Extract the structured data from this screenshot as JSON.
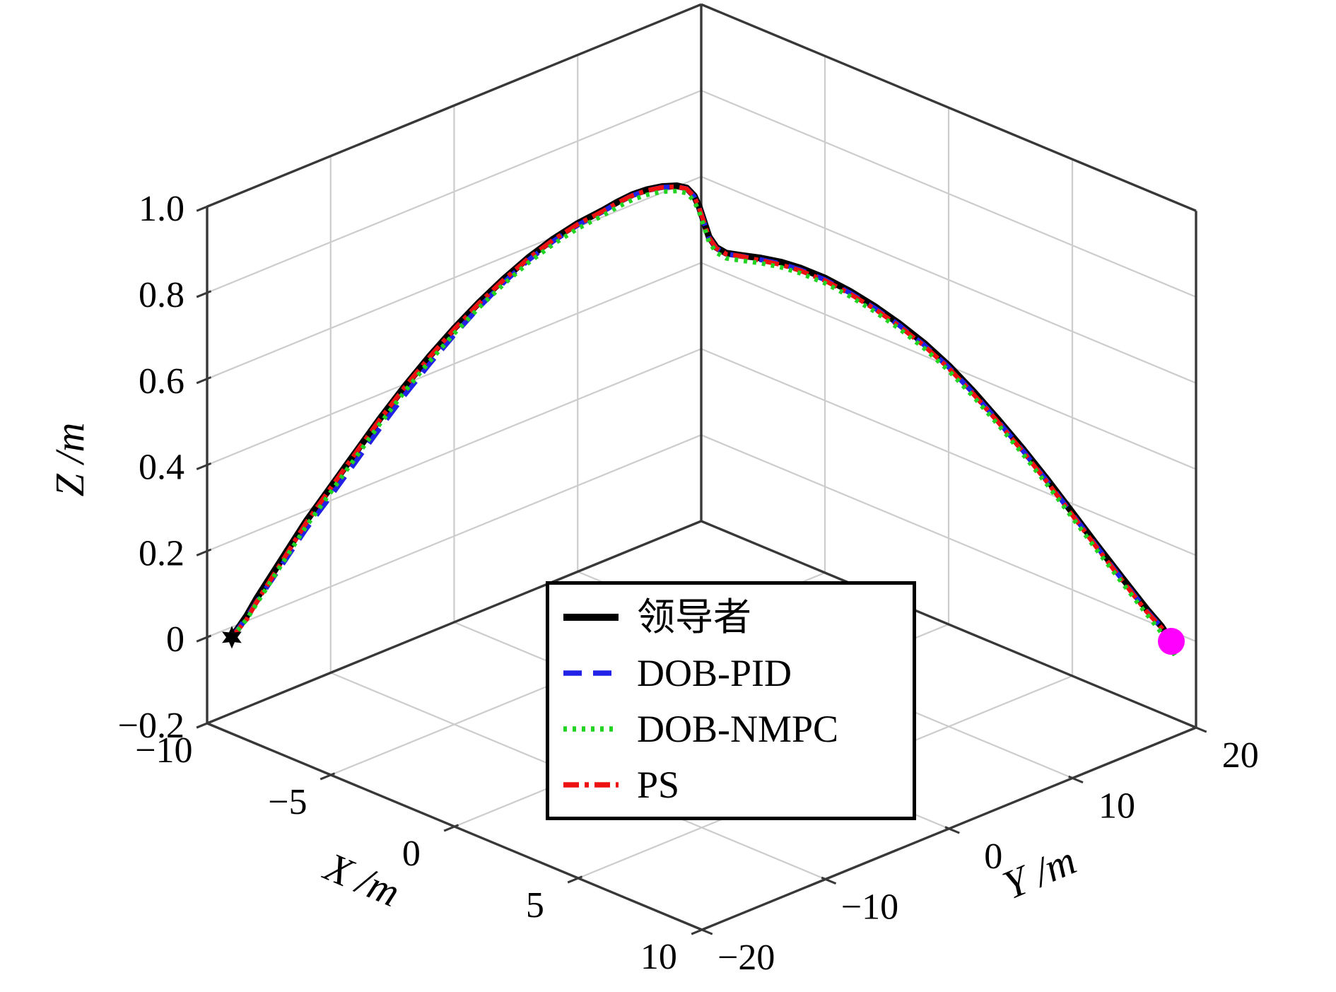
{
  "chart_data": {
    "type": "line",
    "subtype": "3d-trajectory",
    "title": "",
    "xlabel": "X /m",
    "ylabel": "Y /m",
    "zlabel": "Z /m",
    "grid": true,
    "legend_position": "inside-bottom-center",
    "axes": {
      "x": {
        "label": "X /m",
        "range": [
          -10,
          10
        ],
        "tick_values": [
          -10,
          -5,
          0,
          5,
          10
        ],
        "tick_labels": [
          "−10",
          "−5",
          "0",
          "5",
          "10"
        ]
      },
      "y": {
        "label": "Y /m",
        "range": [
          -20,
          20
        ],
        "tick_values": [
          -20,
          -10,
          0,
          10,
          20
        ],
        "tick_labels": [
          "−20",
          "−10",
          "0",
          "10",
          "20"
        ]
      },
      "z": {
        "label": "Z /m",
        "range": [
          -0.2,
          1.0
        ],
        "tick_values": [
          1.0,
          0.8,
          0.6,
          0.4,
          0.2,
          0,
          -0.2
        ],
        "tick_labels": [
          "1.0",
          "0.8",
          "0.6",
          "0.4",
          "0.2",
          "0",
          "−0.2"
        ]
      }
    },
    "grid_lines": {
      "wall_z_values": [
        0,
        0.2,
        0.4,
        0.6,
        0.8
      ],
      "left_wall_y_values": [
        -10,
        0,
        10
      ],
      "right_wall_x_values": [
        -5,
        0,
        5
      ],
      "floor_x_values": [
        -5,
        0,
        5
      ],
      "floor_y_values": [
        -10,
        0,
        10
      ]
    },
    "series": [
      {
        "name": "领导者",
        "color": "#000000",
        "line_style": "solid",
        "line_width": 9.5,
        "points": [
          [
            -9.5,
            -19,
            0
          ],
          [
            -9.2,
            -18.4,
            0.05
          ],
          [
            -9,
            -18,
            0.09
          ],
          [
            -8.5,
            -17,
            0.18
          ],
          [
            -8,
            -16,
            0.27
          ],
          [
            -7.5,
            -15,
            0.35
          ],
          [
            -7,
            -14,
            0.43
          ],
          [
            -6.5,
            -13,
            0.51
          ],
          [
            -6,
            -12,
            0.585
          ],
          [
            -5.5,
            -11,
            0.655
          ],
          [
            -5,
            -10,
            0.72
          ],
          [
            -4.5,
            -9,
            0.78
          ],
          [
            -4,
            -8,
            0.835
          ],
          [
            -3.5,
            -7,
            0.885
          ],
          [
            -3,
            -6,
            0.928
          ],
          [
            -2.5,
            -5,
            0.965
          ],
          [
            -2,
            -4,
            0.995
          ],
          [
            -1.7,
            -3.4,
            1.015
          ],
          [
            -1.4,
            -2.8,
            1.032
          ],
          [
            -1.1,
            -2.2,
            1.044
          ],
          [
            -0.8,
            -1.6,
            1.051
          ],
          [
            -0.5,
            -1,
            1.053
          ],
          [
            -0.3,
            -0.6,
            1.048
          ],
          [
            -0.15,
            -0.3,
            1.03
          ],
          [
            -0.05,
            -0.1,
            1.005
          ],
          [
            0.05,
            0.1,
            0.97
          ],
          [
            0.15,
            0.3,
            0.935
          ],
          [
            0.3,
            0.6,
            0.91
          ],
          [
            0.5,
            1,
            0.897
          ],
          [
            0.8,
            1.6,
            0.892
          ],
          [
            1.2,
            2.4,
            0.886
          ],
          [
            1.6,
            3.2,
            0.877
          ],
          [
            2,
            4,
            0.863
          ],
          [
            2.5,
            5,
            0.84
          ],
          [
            3,
            6,
            0.81
          ],
          [
            3.5,
            7,
            0.775
          ],
          [
            4,
            8,
            0.735
          ],
          [
            4.5,
            9,
            0.69
          ],
          [
            5,
            10,
            0.638
          ],
          [
            5.5,
            11,
            0.578
          ],
          [
            6,
            12,
            0.513
          ],
          [
            6.5,
            13,
            0.445
          ],
          [
            7,
            14,
            0.373
          ],
          [
            7.5,
            15,
            0.298
          ],
          [
            8,
            16,
            0.222
          ],
          [
            8.5,
            17,
            0.148
          ],
          [
            9,
            18,
            0.075
          ],
          [
            9.3,
            18.6,
            0.035
          ],
          [
            9.5,
            19,
            0
          ]
        ]
      },
      {
        "name": "DOB-PID",
        "color": "#2222e6",
        "line_style": "dashed",
        "line_width": 7,
        "points": [
          [
            -9.5,
            -19,
            0
          ],
          [
            -9.2,
            -18.4,
            0.046
          ],
          [
            -9,
            -18,
            0.082
          ],
          [
            -8.5,
            -17,
            0.166
          ],
          [
            -8,
            -16,
            0.252
          ],
          [
            -7.5,
            -15,
            0.329
          ],
          [
            -7,
            -14,
            0.408
          ],
          [
            -6.5,
            -13,
            0.488
          ],
          [
            -6,
            -12,
            0.565
          ],
          [
            -5.5,
            -11,
            0.637
          ],
          [
            -5,
            -10,
            0.705
          ],
          [
            -4.5,
            -9,
            0.769
          ],
          [
            -4,
            -8,
            0.827
          ],
          [
            -3.5,
            -7,
            0.879
          ],
          [
            -3,
            -6,
            0.923
          ],
          [
            -2.5,
            -5,
            0.961
          ],
          [
            -2,
            -4,
            0.992
          ],
          [
            -1.7,
            -3.4,
            1.013
          ],
          [
            -1.4,
            -2.8,
            1.03
          ],
          [
            -1.1,
            -2.2,
            1.042
          ],
          [
            -0.8,
            -1.6,
            1.049
          ],
          [
            -0.5,
            -1,
            1.051
          ],
          [
            -0.3,
            -0.6,
            1.046
          ],
          [
            -0.15,
            -0.3,
            1.028
          ],
          [
            -0.05,
            -0.1,
            1.003
          ],
          [
            0.05,
            0.1,
            0.968
          ],
          [
            0.15,
            0.3,
            0.933
          ],
          [
            0.3,
            0.6,
            0.908
          ],
          [
            0.5,
            1,
            0.895
          ],
          [
            0.8,
            1.6,
            0.89
          ],
          [
            1.2,
            2.4,
            0.882
          ],
          [
            1.6,
            3.2,
            0.873
          ],
          [
            2,
            4,
            0.859
          ],
          [
            2.5,
            5,
            0.836
          ],
          [
            3,
            6,
            0.806
          ],
          [
            3.5,
            7,
            0.771
          ],
          [
            4,
            8,
            0.731
          ],
          [
            4.5,
            9,
            0.686
          ],
          [
            5,
            10,
            0.634
          ],
          [
            5.5,
            11,
            0.574
          ],
          [
            6,
            12,
            0.509
          ],
          [
            6.5,
            13,
            0.441
          ],
          [
            7,
            14,
            0.369
          ],
          [
            7.5,
            15,
            0.294
          ],
          [
            8,
            16,
            0.218
          ],
          [
            8.5,
            17,
            0.144
          ],
          [
            9,
            18,
            0.071
          ],
          [
            9.3,
            18.6,
            0.033
          ],
          [
            9.5,
            19,
            0
          ]
        ]
      },
      {
        "name": "DOB-NMPC",
        "color": "#22d422",
        "line_style": "dotted",
        "line_width": 6.5,
        "points": [
          [
            -9.5,
            -19,
            0
          ],
          [
            -9.2,
            -18.4,
            0.042
          ],
          [
            -9,
            -18,
            0.078
          ],
          [
            -8.5,
            -17,
            0.168
          ],
          [
            -8,
            -16,
            0.258
          ],
          [
            -7.5,
            -15,
            0.338
          ],
          [
            -7,
            -14,
            0.418
          ],
          [
            -6.5,
            -13,
            0.498
          ],
          [
            -6,
            -12,
            0.573
          ],
          [
            -5.5,
            -11,
            0.643
          ],
          [
            -5,
            -10,
            0.708
          ],
          [
            -4.5,
            -9,
            0.768
          ],
          [
            -4,
            -8,
            0.823
          ],
          [
            -3.5,
            -7,
            0.873
          ],
          [
            -3,
            -6,
            0.916
          ],
          [
            -2.5,
            -5,
            0.953
          ],
          [
            -2,
            -4,
            0.983
          ],
          [
            -1.7,
            -3.4,
            1.003
          ],
          [
            -1.4,
            -2.8,
            1.02
          ],
          [
            -1.1,
            -2.2,
            1.032
          ],
          [
            -0.8,
            -1.6,
            1.039
          ],
          [
            -0.5,
            -1,
            1.041
          ],
          [
            -0.3,
            -0.6,
            1.036
          ],
          [
            -0.15,
            -0.3,
            1.018
          ],
          [
            -0.05,
            -0.1,
            0.993
          ],
          [
            0.05,
            0.1,
            0.958
          ],
          [
            0.15,
            0.3,
            0.923
          ],
          [
            0.3,
            0.6,
            0.898
          ],
          [
            0.5,
            1,
            0.885
          ],
          [
            0.8,
            1.6,
            0.88
          ],
          [
            1.2,
            2.4,
            0.874
          ],
          [
            1.6,
            3.2,
            0.865
          ],
          [
            2,
            4,
            0.851
          ],
          [
            2.5,
            5,
            0.828
          ],
          [
            3,
            6,
            0.798
          ],
          [
            3.5,
            7,
            0.763
          ],
          [
            4,
            8,
            0.723
          ],
          [
            4.5,
            9,
            0.678
          ],
          [
            5,
            10,
            0.626
          ],
          [
            5.5,
            11,
            0.566
          ],
          [
            6,
            12,
            0.501
          ],
          [
            6.5,
            13,
            0.433
          ],
          [
            7,
            14,
            0.361
          ],
          [
            7.5,
            15,
            0.286
          ],
          [
            8,
            16,
            0.21
          ],
          [
            8.5,
            17,
            0.136
          ],
          [
            9,
            18,
            0.063
          ],
          [
            9.3,
            18.6,
            0.02
          ],
          [
            9.5,
            19,
            -0.012
          ],
          [
            9.55,
            19.1,
            -0.028
          ],
          [
            9.62,
            19.24,
            -0.042
          ]
        ]
      },
      {
        "name": "PS",
        "color": "#ee1111",
        "line_style": "dashdot",
        "line_width": 6.5,
        "points": [
          [
            -9.5,
            -19,
            0
          ],
          [
            -9.2,
            -18.4,
            0.042
          ],
          [
            -9,
            -18,
            0.082
          ],
          [
            -8.5,
            -17,
            0.174
          ],
          [
            -8,
            -16,
            0.266
          ],
          [
            -7.5,
            -15,
            0.348
          ],
          [
            -7,
            -14,
            0.428
          ],
          [
            -6.5,
            -13,
            0.508
          ],
          [
            -6,
            -12,
            0.583
          ],
          [
            -5.5,
            -11,
            0.653
          ],
          [
            -5,
            -10,
            0.718
          ],
          [
            -4.5,
            -9,
            0.778
          ],
          [
            -4,
            -8,
            0.833
          ],
          [
            -3.5,
            -7,
            0.883
          ],
          [
            -3,
            -6,
            0.926
          ],
          [
            -2.5,
            -5,
            0.963
          ],
          [
            -2,
            -4,
            0.993
          ],
          [
            -1.7,
            -3.4,
            1.013
          ],
          [
            -1.4,
            -2.8,
            1.03
          ],
          [
            -1.1,
            -2.2,
            1.042
          ],
          [
            -0.8,
            -1.6,
            1.049
          ],
          [
            -0.5,
            -1,
            1.051
          ],
          [
            -0.3,
            -0.6,
            1.046
          ],
          [
            -0.15,
            -0.3,
            1.028
          ],
          [
            -0.05,
            -0.1,
            1.003
          ],
          [
            0.05,
            0.1,
            0.968
          ],
          [
            0.15,
            0.3,
            0.933
          ],
          [
            0.3,
            0.6,
            0.908
          ],
          [
            0.5,
            1,
            0.895
          ],
          [
            0.8,
            1.6,
            0.89
          ],
          [
            1.2,
            2.4,
            0.88
          ],
          [
            1.6,
            3.2,
            0.871
          ],
          [
            2,
            4,
            0.857
          ],
          [
            2.5,
            5,
            0.834
          ],
          [
            3,
            6,
            0.804
          ],
          [
            3.5,
            7,
            0.769
          ],
          [
            4,
            8,
            0.729
          ],
          [
            4.5,
            9,
            0.684
          ],
          [
            5,
            10,
            0.632
          ],
          [
            5.5,
            11,
            0.572
          ],
          [
            6,
            12,
            0.507
          ],
          [
            6.5,
            13,
            0.439
          ],
          [
            7,
            14,
            0.367
          ],
          [
            7.5,
            15,
            0.292
          ],
          [
            8,
            16,
            0.216
          ],
          [
            8.5,
            17,
            0.142
          ],
          [
            9,
            18,
            0.069
          ],
          [
            9.3,
            18.6,
            0.032
          ],
          [
            9.5,
            19,
            0
          ]
        ]
      }
    ],
    "markers": [
      {
        "name": "start-marker",
        "shape": "star6",
        "color": "#000000",
        "position": [
          -9.5,
          -19,
          0
        ],
        "size": 16
      },
      {
        "name": "end-marker",
        "shape": "circle",
        "color": "#ff00ff",
        "position": [
          9.5,
          19,
          0
        ],
        "size": 19
      }
    ]
  },
  "legend": {
    "entries": [
      {
        "label": "领导者"
      },
      {
        "label": "DOB-PID"
      },
      {
        "label": "DOB-NMPC"
      },
      {
        "label": "PS"
      }
    ]
  }
}
